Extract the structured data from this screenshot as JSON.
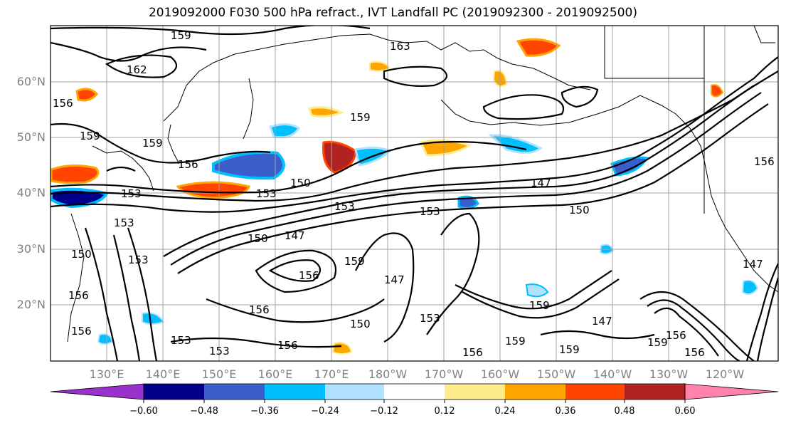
{
  "title": "2019092000 F030 500 hPa refract., IVT Landfall PC (2019092300 - 2019092500)",
  "lat_labels": [
    "60°N",
    "50°N",
    "40°N",
    "30°N",
    "20°N"
  ],
  "lon_labels": [
    "130°E",
    "140°E",
    "150°E",
    "160°E",
    "170°E",
    "180°W",
    "170°W",
    "160°W",
    "150°W",
    "140°W",
    "130°W",
    "120°W"
  ],
  "contour_labels": [
    "159",
    "162",
    "163",
    "156",
    "159",
    "159",
    "159",
    "156",
    "153",
    "153",
    "150",
    "150",
    "153",
    "153",
    "147",
    "150",
    "147",
    "153",
    "147",
    "150",
    "159",
    "156",
    "147",
    "153",
    "156",
    "150",
    "153",
    "153",
    "156",
    "156",
    "156",
    "159",
    "159",
    "159",
    "147",
    "156",
    "156",
    "159",
    "156",
    "153",
    "156"
  ],
  "colorbar": {
    "colors": [
      "#9932CC",
      "#00008B",
      "#3A5FCD",
      "#00BFFF",
      "#B0E2FF",
      "#FFFFFF",
      "#FFEC8B",
      "#FFA500",
      "#FF4500",
      "#B22222",
      "#FF83AB"
    ],
    "tick_labels": [
      "−0.60",
      "−0.48",
      "−0.36",
      "−0.24",
      "−0.12",
      "0.12",
      "0.24",
      "0.36",
      "0.48",
      "0.60"
    ]
  }
}
